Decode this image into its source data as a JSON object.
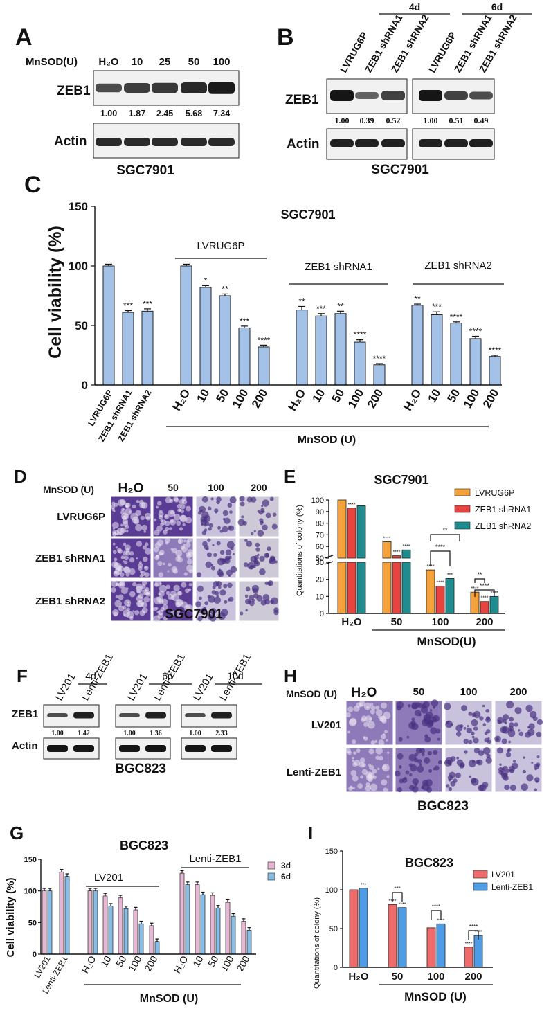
{
  "panels": {
    "A": {
      "letter": "A",
      "row_label": "MnSOD(U)",
      "columns": [
        "H₂O",
        "10",
        "25",
        "50",
        "100"
      ],
      "zeb1_label": "ZEB1",
      "actin_label": "Actin",
      "values": [
        "1.00",
        "1.87",
        "2.45",
        "5.68",
        "7.34"
      ],
      "band_intensity": [
        0.45,
        0.6,
        0.65,
        0.8,
        0.95
      ],
      "caption": "SGC7901"
    },
    "B": {
      "letter": "B",
      "groups": [
        "4d",
        "6d"
      ],
      "columns": [
        "LVRUG6P",
        "ZEB1 shRNA1",
        "ZEB1 shRNA2",
        "LVRUG6P",
        "ZEB1 shRNA1",
        "ZEB1 shRNA2"
      ],
      "zeb1_label": "ZEB1",
      "actin_label": "Actin",
      "values": [
        "1.00",
        "0.39",
        "0.52",
        "1.00",
        "0.51",
        "0.49"
      ],
      "caption": "SGC7901"
    },
    "C": {
      "letter": "C"
    },
    "D": {
      "letter": "D",
      "col_title": "MnSOD (U)",
      "columns": [
        "H₂O",
        "50",
        "100",
        "200"
      ],
      "rows": [
        "LVRUG6P",
        "ZEB1 shRNA1",
        "ZEB1 shRNA2"
      ],
      "caption": "SGC7901"
    },
    "E": {
      "letter": "E"
    },
    "F": {
      "letter": "F",
      "groups": [
        "4d",
        "6d",
        "10d"
      ],
      "columns": [
        "LV201",
        "Lenti-ZEB1"
      ],
      "zeb1_label": "ZEB1",
      "actin_label": "Actin",
      "values": [
        [
          "1.00",
          "1.42"
        ],
        [
          "1.00",
          "1.36"
        ],
        [
          "1.00",
          "2.33"
        ]
      ],
      "caption": "BGC823"
    },
    "G": {
      "letter": "G"
    },
    "H": {
      "letter": "H",
      "col_title": "MnSOD (U)",
      "columns": [
        "H₂O",
        "50",
        "100",
        "200"
      ],
      "rows": [
        "LV201",
        "Lenti-ZEB1"
      ],
      "caption": "BGC823"
    },
    "I": {
      "letter": "I"
    }
  },
  "colors": {
    "blue_bar": "#a4c2e8",
    "orange": "#f5a23a",
    "red": "#e8433e",
    "teal": "#1f8c8f",
    "pink": "#e8b7d4",
    "lightblue": "#88bde6",
    "coral": "#ef6b6b",
    "azure": "#4f9ce6",
    "stain_dark": "#5b3c94",
    "stain_mid": "#8e7ab8",
    "stain_light": "#c9c2dc",
    "stain_pale": "#cdc9d6"
  },
  "chart_data": [
    {
      "id": "C",
      "type": "bar",
      "title": "SGC7901",
      "ylabel": "Cell viability (%)",
      "ylim": [
        0,
        150
      ],
      "yticks": [
        "0",
        "50",
        "100",
        "150"
      ],
      "categories": [
        "LVRUG6P",
        "ZEB1 shRNA1",
        "ZEB1 shRNA2",
        "H₂O",
        "10",
        "50",
        "100",
        "200",
        "H₂O",
        "10",
        "50",
        "100",
        "200",
        "H₂O",
        "10",
        "50",
        "100",
        "200"
      ],
      "values": [
        100,
        61,
        62,
        100,
        82,
        75,
        48,
        32,
        63,
        58,
        60,
        36,
        17,
        67,
        59,
        52,
        39,
        24
      ],
      "errors": [
        1.5,
        1.5,
        2,
        1.5,
        1.5,
        1.5,
        1.5,
        1.5,
        3,
        2,
        2,
        2,
        1,
        1,
        2.5,
        1,
        2,
        1
      ],
      "significance": [
        "",
        "***",
        "***",
        "",
        "*",
        "**",
        "***",
        "****",
        "**",
        "***",
        "**",
        "****",
        "****",
        "**",
        "***",
        "****",
        "****",
        "****"
      ],
      "group_labels": [
        "LVRUG6P",
        "ZEB1 shRNA1",
        "ZEB1 shRNA2"
      ],
      "xlabel": "MnSOD (U)"
    },
    {
      "id": "E",
      "type": "bar",
      "title": "SGC7901",
      "ylabel": "Quantitations of colony (%)",
      "yticks": [
        "0",
        "10",
        "20",
        "30",
        "50",
        "60",
        "70",
        "80",
        "90",
        "100"
      ],
      "axis_break": [
        30,
        50
      ],
      "categories": [
        "H₂O",
        "50",
        "100",
        "200"
      ],
      "series": [
        {
          "name": "LVRUG6P",
          "values": [
            100,
            64,
            25.5,
            12.5
          ]
        },
        {
          "name": "ZEB1 shRNA1",
          "values": [
            93,
            52,
            16,
            7
          ]
        },
        {
          "name": "ZEB1 shRNA2",
          "values": [
            95,
            57,
            20.5,
            10
          ]
        }
      ],
      "significance": [
        [
          "",
          "****",
          ""
        ],
        [
          "****",
          "****",
          "****"
        ],
        [
          "****",
          "****",
          "***"
        ],
        [
          "****",
          "****",
          "****"
        ]
      ],
      "brackets": [
        "****",
        "**",
        "****",
        "**"
      ],
      "xlabel": "MnSOD(U)",
      "legend": "top-right"
    },
    {
      "id": "G",
      "type": "bar",
      "title": "BGC823",
      "ylabel": "Cell viability (%)",
      "ylim": [
        0,
        150
      ],
      "yticks": [
        "0",
        "50",
        "100",
        "150"
      ],
      "categories": [
        "LV201",
        "Lenti-ZEB1",
        "H₂O",
        "10",
        "50",
        "100",
        "200",
        "H₂O",
        "10",
        "50",
        "100",
        "200"
      ],
      "series": [
        {
          "name": "3d",
          "values": [
            100,
            130,
            100,
            92,
            89,
            70,
            45,
            128,
            110,
            93,
            82,
            52
          ]
        },
        {
          "name": "6d",
          "values": [
            100,
            123,
            100,
            76,
            72,
            48,
            20,
            110,
            94,
            73,
            60,
            38
          ]
        }
      ],
      "group_labels": [
        "LV201",
        "Lenti-ZEB1"
      ],
      "xlabel": "MnSOD (U)",
      "legend": "top-right"
    },
    {
      "id": "I",
      "type": "bar",
      "title": "BGC823",
      "ylabel": "Quantitations of colony (%)",
      "ylim": [
        0,
        150
      ],
      "yticks": [
        "0",
        "50",
        "100",
        "150"
      ],
      "categories": [
        "H₂O",
        "50",
        "100",
        "200"
      ],
      "series": [
        {
          "name": "LV201",
          "values": [
            100,
            81,
            51,
            26
          ]
        },
        {
          "name": "Lenti-ZEB1",
          "values": [
            102,
            77,
            56,
            41
          ]
        }
      ],
      "significance": [
        [
          "",
          "***"
        ],
        [
          "****",
          "****"
        ],
        [
          "",
          "****"
        ],
        [
          "****",
          "****"
        ]
      ],
      "brackets": [
        "***",
        "****",
        "****"
      ],
      "xlabel": "MnSOD (U)",
      "legend": "top-right"
    }
  ]
}
